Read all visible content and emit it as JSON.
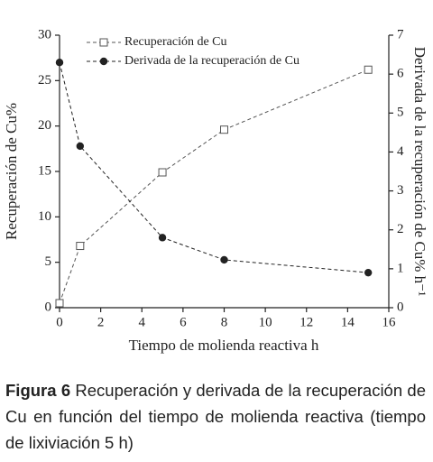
{
  "chart_data": {
    "type": "line",
    "x_label": "Tiempo de molienda reactiva h",
    "y_label": "Recuperación de Cu%",
    "y2_label": "Derivada de la recuperación de Cu% h⁻¹",
    "x": [
      0,
      1,
      5,
      8,
      15
    ],
    "series": [
      {
        "name": "Recuperación de Cu",
        "color": "#555555",
        "marker": "square",
        "values": [
          0.5,
          6.8,
          14.9,
          19.6,
          26.2
        ]
      },
      {
        "name": "Derivada de la recuperación de Cu",
        "color": "#222222",
        "marker": "circle",
        "axis": "y2",
        "values": [
          6.3,
          4.15,
          1.8,
          1.23,
          0.9
        ]
      }
    ],
    "xlim": [
      0,
      16
    ],
    "xticks": [
      0,
      2,
      4,
      6,
      8,
      10,
      12,
      14,
      16
    ],
    "ylim": [
      0,
      30
    ],
    "yticks": [
      0,
      5,
      10,
      15,
      20,
      25,
      30
    ],
    "y2lim": [
      0,
      7
    ],
    "y2ticks": [
      0,
      1,
      2,
      3,
      4,
      5,
      6,
      7
    ],
    "legend": "upper left"
  },
  "caption": {
    "label": "Figura 6",
    "text": "Recuperación y derivada de la recuperación de Cu en función del tiempo de molienda reactiva (tiempo de lixiviación 5 h)"
  }
}
